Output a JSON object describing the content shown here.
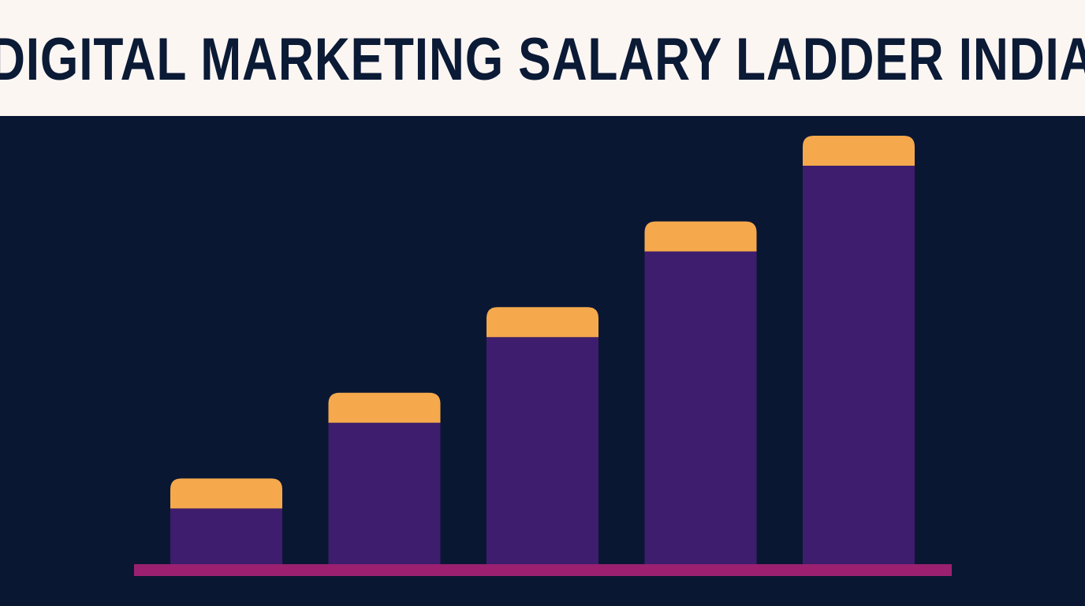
{
  "header": {
    "title": "DIGITAL MARKETING SALARY LADDER INDIA"
  },
  "colors": {
    "header_bg": "#fcf6f3",
    "title": "#0b1a35",
    "plot_bg": "#0a1733",
    "bar_body": "#3f1d6e",
    "bar_cap": "#f5a94c",
    "baseline": "#9b2170"
  },
  "chart_data": {
    "type": "bar",
    "title": "DIGITAL MARKETING SALARY LADDER INDIA",
    "categories": [
      "",
      "",
      "",
      "",
      ""
    ],
    "values": [
      1,
      2,
      3,
      4,
      5
    ],
    "xlabel": "",
    "ylabel": "",
    "ylim": [
      0,
      5
    ],
    "grid": false,
    "legend": "none"
  }
}
